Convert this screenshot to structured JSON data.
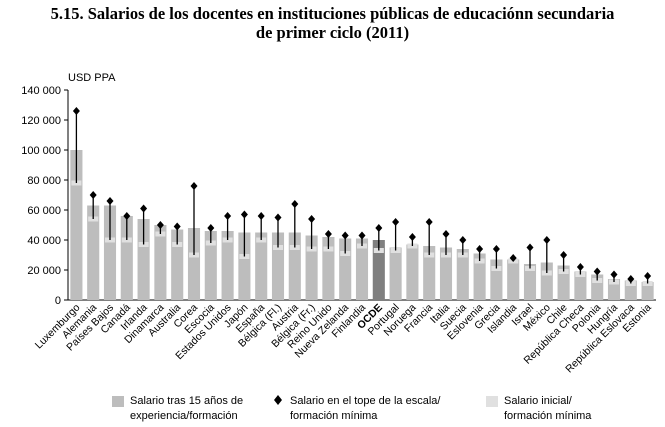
{
  "title_line1": "5.15.  Salarios de los docentes en instituciones públicas de educaciónn secundaria",
  "title_line2": "de primer ciclo (2011)",
  "chart_data": {
    "type": "bar",
    "ylabel": "USD PPA",
    "ylim": [
      0,
      140000
    ],
    "yticks": [
      "0",
      "20 000",
      "40 000",
      "60 000",
      "80 000",
      "100 000",
      "120 000",
      "140 000"
    ],
    "ytick_values": [
      0,
      20000,
      40000,
      60000,
      80000,
      100000,
      120000,
      140000
    ],
    "grid": false,
    "legend_position": "bottom",
    "colors": {
      "bar_15y": "#bdbdbd",
      "bar_start": "#e0e0e0",
      "bar_oecd": "#7f7f7f",
      "marker": "#000000"
    },
    "categories": [
      "Luxemburgo",
      "Alemania",
      "Países Bajos",
      "Canadá",
      "Irlanda",
      "Dinamarca",
      "Australia",
      "Corea",
      "Escocia",
      "Estados Unidos",
      "Japón",
      "España",
      "Bélgica (Fl.)",
      "Austria",
      "Bélgica (Fr.)",
      "Reino Unido",
      "Nueva Zelanda",
      "Finlandia",
      "OCDE",
      "Portugal",
      "Noruega",
      "Francia",
      "Italia",
      "Suecia",
      "Eslovenia",
      "Grecia",
      "Islandia",
      "Israel",
      "México",
      "Chile",
      "República Checa",
      "Polonia",
      "Hungría",
      "República Eslovaca",
      "Estonia"
    ],
    "highlight_category": "OCDE",
    "series": [
      {
        "name": "Salario tras 15 años de experiencia/formación",
        "values": [
          100000,
          63000,
          63000,
          56000,
          54000,
          50000,
          47000,
          48000,
          46000,
          46000,
          45000,
          45000,
          45000,
          45000,
          43000,
          42000,
          41000,
          41000,
          40000,
          35000,
          37000,
          36000,
          35000,
          34000,
          31000,
          27000,
          27000,
          24000,
          25000,
          23000,
          19000,
          17000,
          14000,
          13000,
          12000
        ]
      },
      {
        "name": "Salario en el tope de la escala/formación mínima",
        "values": [
          126000,
          70000,
          66000,
          56000,
          61000,
          50000,
          49000,
          76000,
          48000,
          56000,
          57000,
          56000,
          55000,
          64000,
          54000,
          44000,
          43000,
          43000,
          48000,
          52000,
          42000,
          52000,
          44000,
          40000,
          34000,
          34000,
          28000,
          35000,
          40000,
          30000,
          22000,
          19000,
          17000,
          14000,
          16000
        ]
      },
      {
        "name": "Salario inicial/formación mínima",
        "values": [
          78000,
          54000,
          40000,
          40000,
          37000,
          44000,
          37000,
          30000,
          38000,
          40000,
          29000,
          40000,
          35000,
          35000,
          34000,
          34000,
          31000,
          36000,
          33000,
          33000,
          36000,
          30000,
          30000,
          30000,
          26000,
          21000,
          26000,
          21000,
          18000,
          19000,
          17000,
          13000,
          12000,
          11000,
          11000
        ]
      }
    ],
    "legend": [
      {
        "line1": "Salario tras 15 años de",
        "line2": "experiencia/formación"
      },
      {
        "line1": "Salario en el tope de la escala/",
        "line2": "formación mínima"
      },
      {
        "line1": "Salario inicial/",
        "line2": "formación mínima"
      }
    ]
  }
}
